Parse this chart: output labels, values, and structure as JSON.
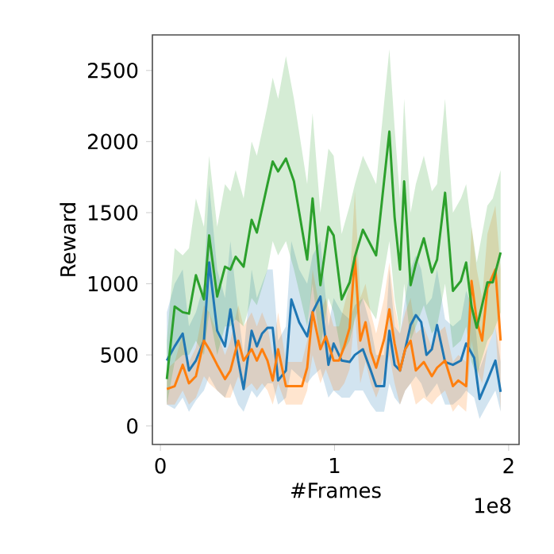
{
  "chart_data": {
    "type": "line",
    "xlabel": "#Frames",
    "ylabel": "Reward",
    "annotations": [
      "1e8"
    ],
    "xlim": [
      -0.046,
      2.06
    ],
    "ylim": [
      -130,
      2750
    ],
    "xticks": [
      0,
      1,
      2
    ],
    "yticks": [
      0,
      500,
      1000,
      1500,
      2000,
      2500
    ],
    "series": [
      {
        "color": "#1f77b4",
        "x": [
          0.037,
          0.082,
          0.128,
          0.164,
          0.204,
          0.25,
          0.28,
          0.326,
          0.371,
          0.402,
          0.447,
          0.478,
          0.524,
          0.554,
          0.584,
          0.615,
          0.645,
          0.676,
          0.721,
          0.752,
          0.797,
          0.843,
          0.874,
          0.919,
          0.965,
          0.995,
          1.041,
          1.087,
          1.117,
          1.163,
          1.208,
          1.239,
          1.285,
          1.315,
          1.345,
          1.376,
          1.406,
          1.437,
          1.467,
          1.498,
          1.528,
          1.559,
          1.589,
          1.635,
          1.68,
          1.726,
          1.756,
          1.802,
          1.833,
          1.878,
          1.924,
          1.954
        ],
        "values": [
          460,
          560,
          650,
          390,
          460,
          600,
          1150,
          670,
          560,
          820,
          460,
          260,
          670,
          560,
          650,
          690,
          690,
          320,
          390,
          890,
          730,
          630,
          800,
          910,
          430,
          580,
          460,
          450,
          500,
          540,
          390,
          280,
          280,
          670,
          430,
          390,
          540,
          710,
          780,
          730,
          500,
          540,
          710,
          450,
          430,
          460,
          580,
          480,
          190,
          320,
          460,
          240
        ],
        "lower": [
          150,
          120,
          200,
          100,
          180,
          250,
          350,
          250,
          200,
          300,
          150,
          100,
          250,
          200,
          250,
          300,
          300,
          150,
          200,
          400,
          350,
          300,
          350,
          400,
          200,
          250,
          200,
          200,
          250,
          250,
          150,
          100,
          100,
          300,
          200,
          150,
          250,
          300,
          350,
          300,
          200,
          250,
          300,
          150,
          150,
          200,
          250,
          200,
          50,
          150,
          250,
          100
        ],
        "upper": [
          800,
          1000,
          1100,
          700,
          800,
          1000,
          1700,
          1100,
          900,
          1300,
          800,
          500,
          1100,
          900,
          1000,
          1100,
          1100,
          600,
          700,
          1300,
          1100,
          1000,
          1200,
          1300,
          700,
          900,
          800,
          750,
          850,
          900,
          700,
          500,
          500,
          1100,
          700,
          650,
          900,
          1100,
          1200,
          1100,
          850,
          900,
          1100,
          750,
          700,
          750,
          950,
          800,
          400,
          550,
          700,
          450
        ]
      },
      {
        "color": "#ff7f0e",
        "x": [
          0.037,
          0.082,
          0.128,
          0.164,
          0.204,
          0.25,
          0.28,
          0.326,
          0.371,
          0.402,
          0.447,
          0.478,
          0.524,
          0.554,
          0.584,
          0.615,
          0.645,
          0.676,
          0.721,
          0.767,
          0.813,
          0.843,
          0.874,
          0.919,
          0.95,
          0.995,
          1.026,
          1.056,
          1.087,
          1.117,
          1.148,
          1.178,
          1.208,
          1.239,
          1.285,
          1.315,
          1.345,
          1.376,
          1.406,
          1.437,
          1.467,
          1.513,
          1.559,
          1.589,
          1.635,
          1.68,
          1.711,
          1.756,
          1.787,
          1.817,
          1.848,
          1.878,
          1.924,
          1.954
        ],
        "values": [
          260,
          280,
          430,
          300,
          350,
          600,
          540,
          430,
          330,
          390,
          600,
          460,
          540,
          460,
          540,
          460,
          320,
          540,
          280,
          280,
          280,
          410,
          800,
          540,
          630,
          460,
          460,
          560,
          690,
          1190,
          600,
          730,
          520,
          410,
          610,
          820,
          580,
          390,
          540,
          600,
          390,
          450,
          350,
          410,
          460,
          280,
          320,
          280,
          1020,
          740,
          600,
          970,
          1100,
          600
        ],
        "lower": [
          150,
          150,
          250,
          150,
          200,
          350,
          300,
          250,
          200,
          200,
          350,
          250,
          300,
          250,
          300,
          250,
          150,
          300,
          150,
          150,
          150,
          250,
          500,
          300,
          400,
          250,
          250,
          300,
          400,
          800,
          300,
          450,
          300,
          200,
          350,
          500,
          300,
          150,
          250,
          300,
          150,
          200,
          150,
          200,
          250,
          100,
          150,
          100,
          600,
          400,
          300,
          550,
          700,
          100
        ],
        "upper": [
          400,
          450,
          650,
          450,
          550,
          850,
          800,
          650,
          500,
          600,
          850,
          700,
          800,
          700,
          800,
          700,
          500,
          800,
          450,
          450,
          450,
          600,
          1100,
          800,
          900,
          700,
          700,
          850,
          1000,
          1650,
          900,
          1000,
          800,
          650,
          900,
          1150,
          850,
          650,
          800,
          900,
          650,
          700,
          550,
          650,
          700,
          450,
          500,
          450,
          1400,
          1100,
          900,
          1350,
          1550,
          1100
        ]
      },
      {
        "color": "#2ca02c",
        "x": [
          0.037,
          0.082,
          0.128,
          0.164,
          0.204,
          0.25,
          0.28,
          0.326,
          0.371,
          0.402,
          0.432,
          0.478,
          0.524,
          0.554,
          0.615,
          0.645,
          0.676,
          0.721,
          0.767,
          0.843,
          0.874,
          0.919,
          0.965,
          0.995,
          1.041,
          1.087,
          1.117,
          1.163,
          1.239,
          1.315,
          1.345,
          1.376,
          1.4,
          1.437,
          1.467,
          1.513,
          1.559,
          1.589,
          1.635,
          1.68,
          1.726,
          1.756,
          1.787,
          1.817,
          1.878,
          1.909,
          1.954
        ],
        "values": [
          330,
          840,
          800,
          790,
          1060,
          890,
          1340,
          910,
          1120,
          1100,
          1190,
          1120,
          1450,
          1360,
          1700,
          1860,
          1790,
          1880,
          1720,
          1170,
          1600,
          990,
          1400,
          1340,
          890,
          1010,
          1190,
          1380,
          1200,
          2070,
          1470,
          1100,
          1720,
          990,
          1140,
          1320,
          1080,
          1170,
          1640,
          950,
          1020,
          1150,
          840,
          690,
          1010,
          1010,
          1220
        ],
        "lower": [
          150,
          450,
          500,
          500,
          600,
          500,
          800,
          500,
          700,
          700,
          750,
          700,
          900,
          850,
          1100,
          1300,
          1200,
          1300,
          1100,
          700,
          1000,
          550,
          900,
          800,
          500,
          600,
          750,
          900,
          750,
          1300,
          900,
          650,
          1000,
          600,
          700,
          850,
          650,
          700,
          1000,
          550,
          600,
          700,
          450,
          350,
          600,
          650,
          800
        ],
        "upper": [
          600,
          1250,
          1200,
          1250,
          1600,
          1400,
          1900,
          1400,
          1700,
          1650,
          1800,
          1600,
          2000,
          1900,
          2250,
          2450,
          2300,
          2600,
          2300,
          1700,
          2200,
          1500,
          1950,
          1900,
          1350,
          1550,
          1700,
          1900,
          1700,
          2650,
          2100,
          1600,
          2300,
          1500,
          1700,
          1900,
          1650,
          1700,
          2300,
          1500,
          1600,
          1700,
          1400,
          1150,
          1550,
          1600,
          1800
        ]
      }
    ]
  }
}
